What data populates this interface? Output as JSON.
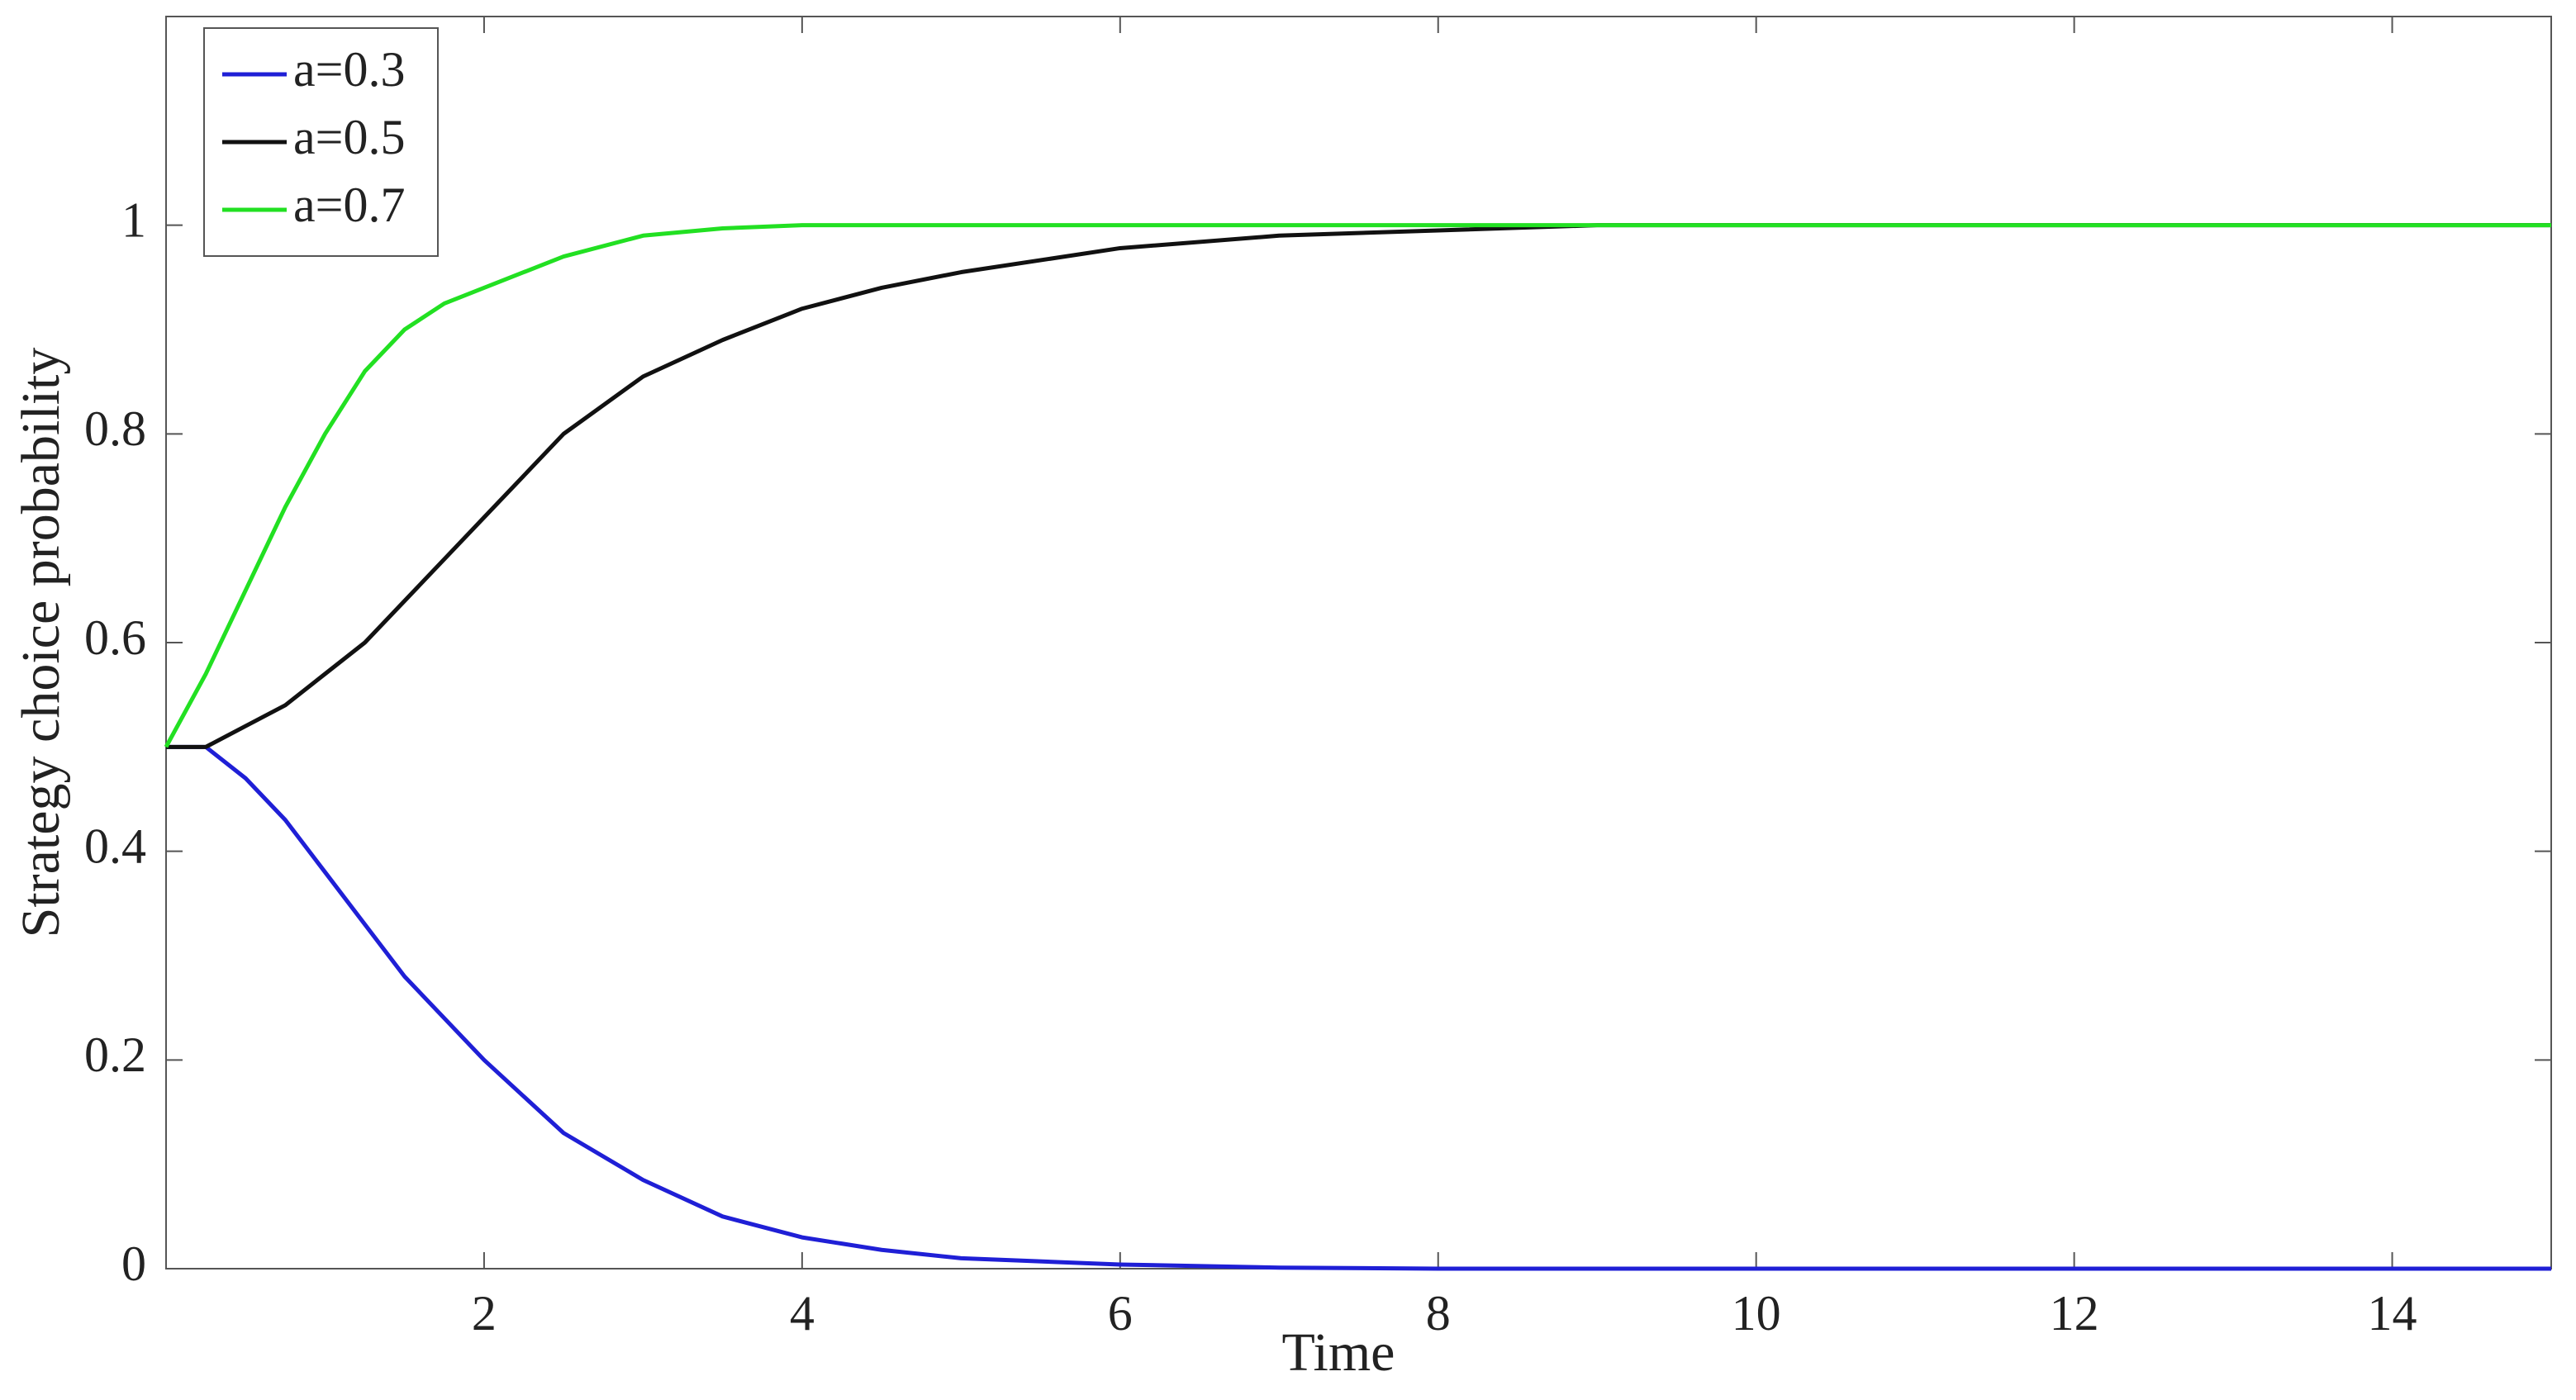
{
  "chart_data": {
    "type": "line",
    "x_label": "Time",
    "y_label": "Strategy choice probability",
    "xlim": [
      0,
      15
    ],
    "ylim": [
      0,
      1.2
    ],
    "xticks": [
      2,
      4,
      6,
      8,
      10,
      12,
      14
    ],
    "yticks": [
      0,
      0.2,
      0.4,
      0.6,
      0.8,
      1
    ],
    "grid": false,
    "legend_position": "upper-left",
    "x": [
      0,
      0.25,
      0.5,
      0.75,
      1,
      1.25,
      1.5,
      1.75,
      2,
      2.5,
      3,
      3.5,
      4,
      4.5,
      5,
      6,
      7,
      8,
      9,
      10,
      12,
      15
    ],
    "series": [
      {
        "name": "a=0.3",
        "color": "#1f1fd6",
        "values": [
          0.5,
          0.5,
          0.47,
          0.43,
          0.38,
          0.33,
          0.28,
          0.24,
          0.2,
          0.13,
          0.085,
          0.05,
          0.03,
          0.018,
          0.01,
          0.004,
          0.001,
          0,
          0,
          0,
          0,
          0
        ]
      },
      {
        "name": "a=0.5",
        "color": "#111111",
        "values": [
          0.5,
          0.5,
          0.52,
          0.54,
          0.57,
          0.6,
          0.64,
          0.68,
          0.72,
          0.8,
          0.855,
          0.89,
          0.92,
          0.94,
          0.955,
          0.978,
          0.99,
          0.995,
          1,
          1,
          1,
          1
        ]
      },
      {
        "name": "a=0.7",
        "color": "#22e022",
        "values": [
          0.5,
          0.57,
          0.65,
          0.73,
          0.8,
          0.86,
          0.9,
          0.925,
          0.94,
          0.97,
          0.99,
          0.997,
          1,
          1,
          1,
          1,
          1,
          1,
          1,
          1,
          1,
          1
        ]
      }
    ]
  }
}
